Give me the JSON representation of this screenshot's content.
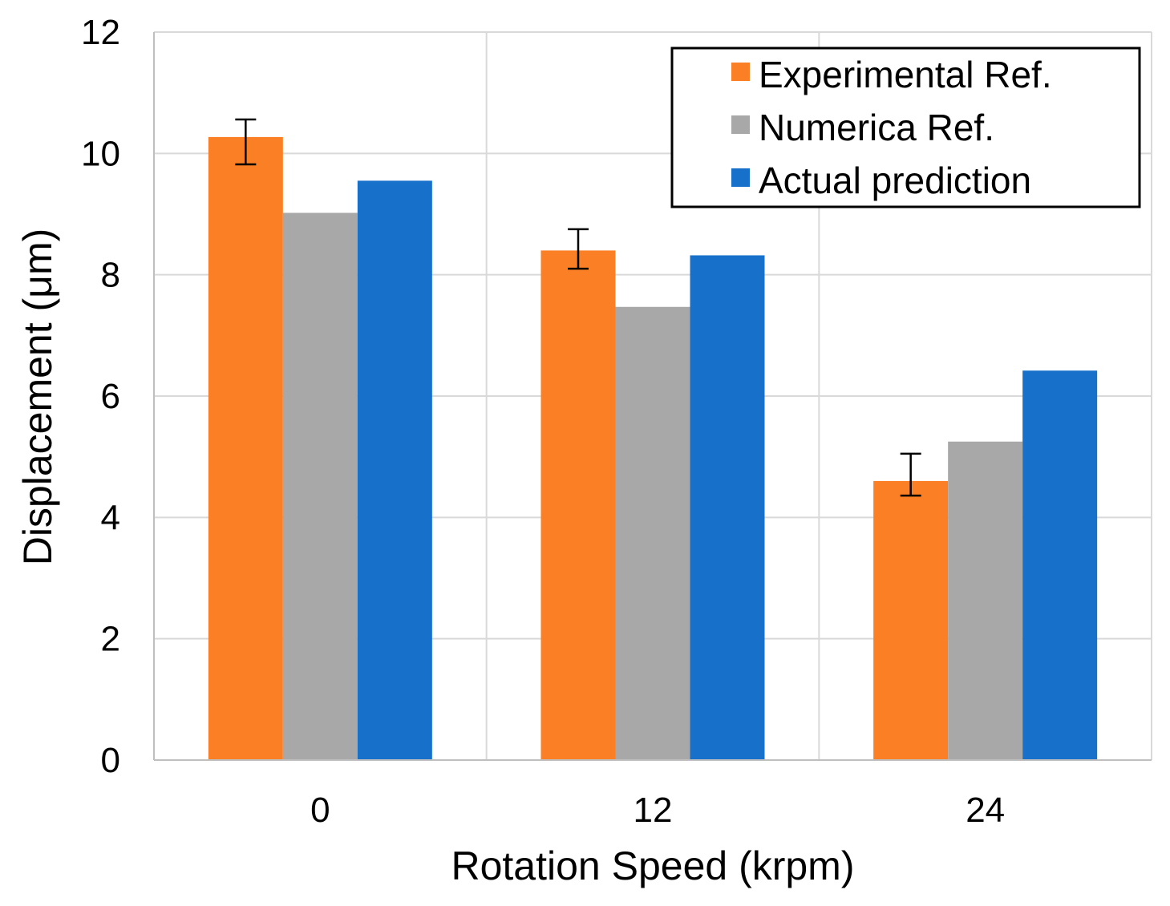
{
  "chart_data": {
    "type": "bar",
    "title": "",
    "xlabel": "Rotation Speed (krpm)",
    "ylabel": "Displacement (μm)",
    "categories": [
      "0",
      "12",
      "24"
    ],
    "ylim": [
      0,
      12
    ],
    "yticks": [
      "0",
      "2",
      "4",
      "6",
      "8",
      "10",
      "12"
    ],
    "grid": true,
    "legend_position": "top-right",
    "series": [
      {
        "name": "Experimental Ref.",
        "color": "#fb7f24",
        "values": [
          10.27,
          8.4,
          4.6
        ],
        "error_low": [
          9.82,
          8.1,
          4.36
        ],
        "error_high": [
          10.56,
          8.75,
          5.05
        ]
      },
      {
        "name": "Numerica Ref.",
        "color": "#a8a8a8",
        "values": [
          9.02,
          7.47,
          5.25
        ]
      },
      {
        "name": "Actual prediction",
        "color": "#1771cb",
        "values": [
          9.55,
          8.32,
          6.42
        ]
      }
    ]
  }
}
